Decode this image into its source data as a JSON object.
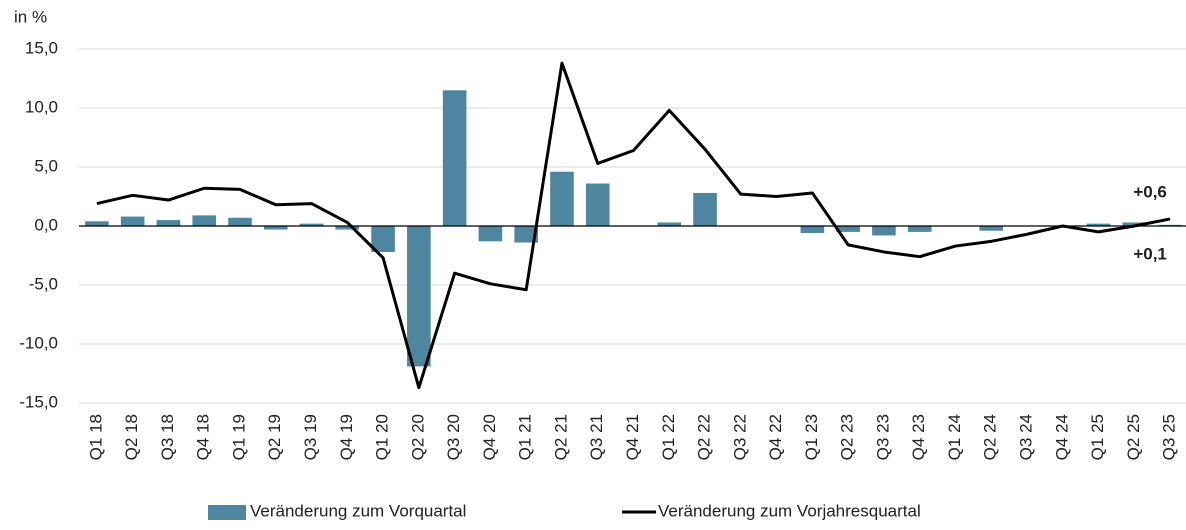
{
  "chart_data": {
    "type": "bar-line",
    "y_label": "in %",
    "categories": [
      "Q1 18",
      "Q2 18",
      "Q3 18",
      "Q4 18",
      "Q1 19",
      "Q2 19",
      "Q3 19",
      "Q4 19",
      "Q1 20",
      "Q2 20",
      "Q3 20",
      "Q4 20",
      "Q1 21",
      "Q2 21",
      "Q3 21",
      "Q4 21",
      "Q1 22",
      "Q2 22",
      "Q3 22",
      "Q4 22",
      "Q1 23",
      "Q2 23",
      "Q3 23",
      "Q4 23",
      "Q1 24",
      "Q2 24",
      "Q3 24",
      "Q4 24",
      "Q1 25",
      "Q2 25",
      "Q3 25"
    ],
    "series": [
      {
        "name": "Veränderung zum Vorquartal",
        "type": "bar",
        "color": "#4e86a0",
        "values": [
          0.4,
          0.8,
          0.5,
          0.9,
          0.7,
          -0.3,
          0.2,
          -0.3,
          -2.2,
          -11.9,
          11.5,
          -1.3,
          -1.4,
          4.6,
          3.6,
          0.0,
          0.3,
          2.8,
          0.0,
          0.0,
          -0.6,
          -0.5,
          -0.8,
          -0.5,
          0.0,
          -0.4,
          0.0,
          0.0,
          0.2,
          0.3,
          0.1
        ],
        "value_labels": [
          null,
          null,
          null,
          null,
          null,
          null,
          null,
          null,
          null,
          null,
          null,
          null,
          null,
          null,
          null,
          null,
          null,
          null,
          null,
          null,
          null,
          null,
          null,
          null,
          null,
          null,
          null,
          null,
          null,
          null,
          "+0,1"
        ]
      },
      {
        "name": "Veränderung zum Vorjahresquartal",
        "type": "line",
        "color": "#000000",
        "values": [
          1.9,
          2.6,
          2.2,
          3.2,
          3.1,
          1.8,
          1.9,
          0.3,
          -2.7,
          -13.7,
          -4.0,
          -4.9,
          -5.4,
          13.8,
          5.3,
          6.4,
          9.8,
          6.5,
          2.7,
          2.5,
          2.8,
          -1.6,
          -2.2,
          -2.6,
          -1.7,
          -1.3,
          -0.7,
          0.0,
          -0.5,
          0.0,
          0.6
        ],
        "value_labels": [
          null,
          null,
          null,
          null,
          null,
          null,
          null,
          null,
          null,
          null,
          null,
          null,
          null,
          null,
          null,
          null,
          null,
          null,
          null,
          null,
          null,
          null,
          null,
          null,
          null,
          null,
          null,
          null,
          null,
          null,
          "+0,6"
        ]
      }
    ],
    "ylim": [
      -15,
      15
    ],
    "yticks": [
      {
        "value": -15,
        "label": "-15,0"
      },
      {
        "value": -10,
        "label": "-10,0"
      },
      {
        "value": -5,
        "label": "-5,0"
      },
      {
        "value": 0,
        "label": "0,0"
      },
      {
        "value": 5,
        "label": "5,0"
      },
      {
        "value": 10,
        "label": "10,0"
      },
      {
        "value": 15,
        "label": "15,0"
      }
    ],
    "grid": true
  }
}
